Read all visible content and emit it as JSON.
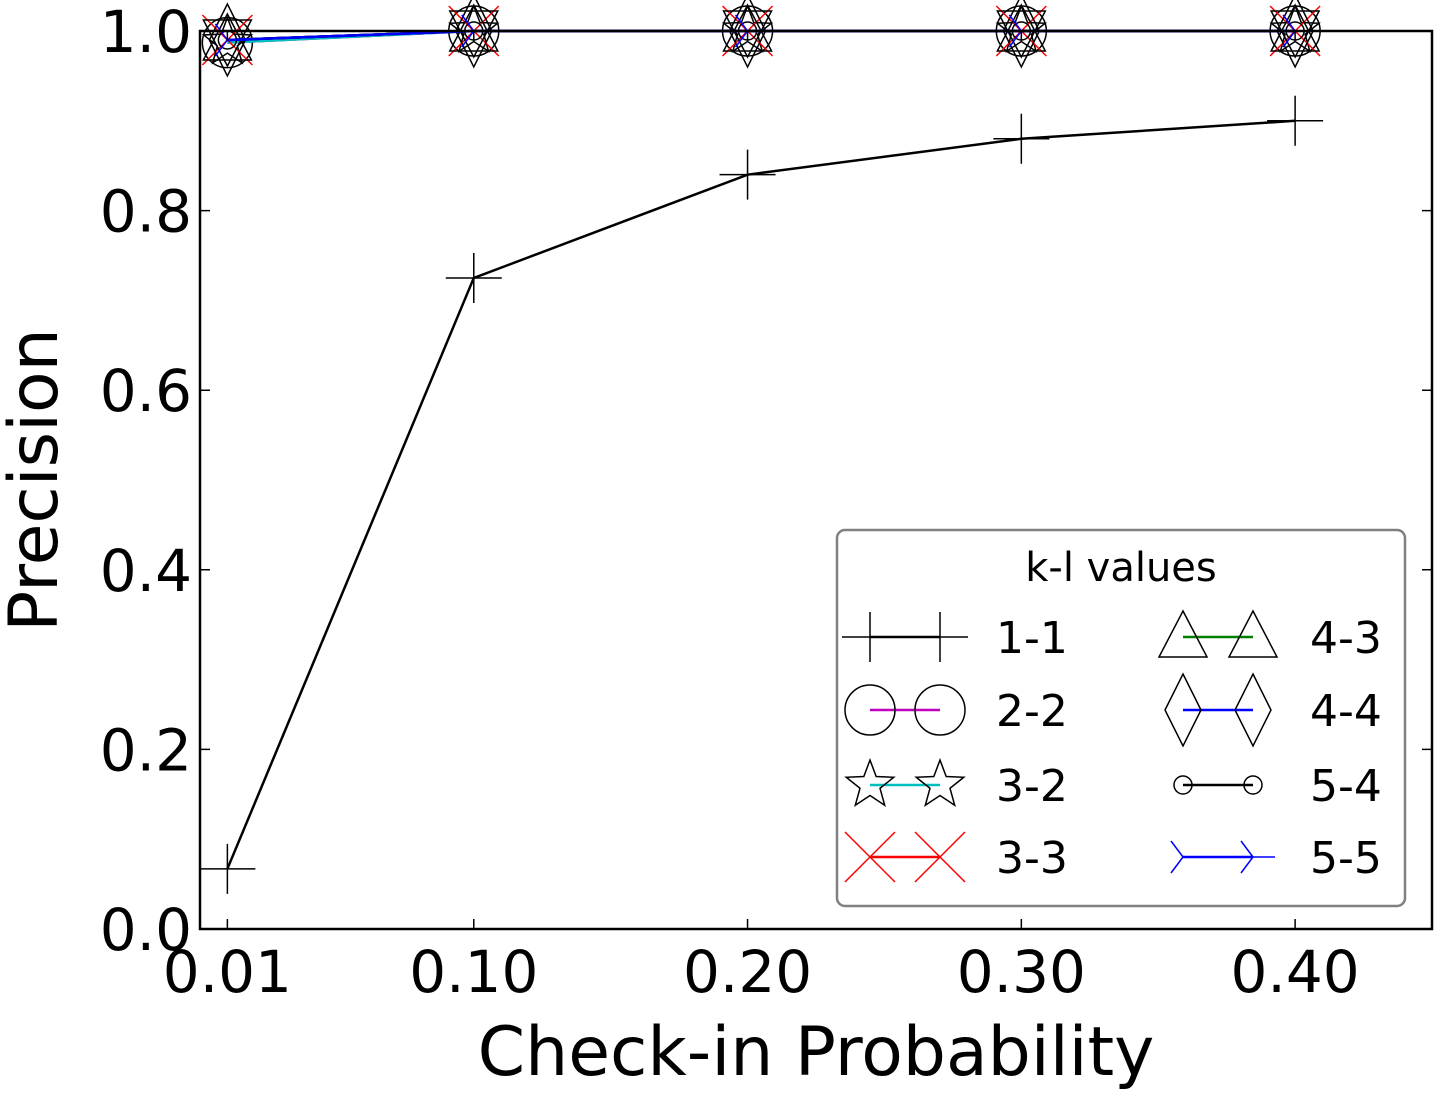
{
  "chart_data": {
    "type": "line",
    "xlabel": "Check-in Probability",
    "ylabel": "Precision",
    "categories": [
      "0.01",
      "0.10",
      "0.20",
      "0.30",
      "0.40"
    ],
    "x": [
      0.01,
      0.1,
      0.2,
      0.3,
      0.4
    ],
    "xlim": [
      0.0,
      0.45
    ],
    "ylim": [
      0.0,
      1.0
    ],
    "yticks": [
      "0.0",
      "0.2",
      "0.4",
      "0.6",
      "0.8",
      "1.0"
    ],
    "grid": false,
    "legend": {
      "title": "k-l values",
      "placement": "lower-right",
      "columns": 2
    },
    "series": [
      {
        "name": "1-1",
        "values": [
          0.067,
          0.725,
          0.84,
          0.88,
          0.9
        ],
        "color": "#000000",
        "marker": "plus"
      },
      {
        "name": "2-2",
        "values": [
          0.987,
          1.0,
          1.0,
          1.0,
          1.0
        ],
        "color": "#bf00bf",
        "marker": "circle"
      },
      {
        "name": "3-2",
        "values": [
          0.987,
          1.0,
          1.0,
          1.0,
          1.0
        ],
        "color": "#00bfbf",
        "marker": "star"
      },
      {
        "name": "3-3",
        "values": [
          0.99,
          1.0,
          1.0,
          1.0,
          1.0
        ],
        "color": "#ff0000",
        "marker": "x"
      },
      {
        "name": "4-3",
        "values": [
          0.99,
          1.0,
          1.0,
          1.0,
          1.0
        ],
        "color": "#008000",
        "marker": "triangle-up"
      },
      {
        "name": "4-4",
        "values": [
          0.99,
          1.0,
          1.0,
          1.0,
          1.0
        ],
        "color": "#0000ff",
        "marker": "diamond"
      },
      {
        "name": "5-4",
        "values": [
          0.99,
          1.0,
          1.0,
          1.0,
          1.0
        ],
        "color": "#000000",
        "marker": "small-circle"
      },
      {
        "name": "5-5",
        "values": [
          0.99,
          1.0,
          1.0,
          1.0,
          1.0
        ],
        "color": "#0000ff",
        "marker": "tri-right"
      }
    ]
  }
}
